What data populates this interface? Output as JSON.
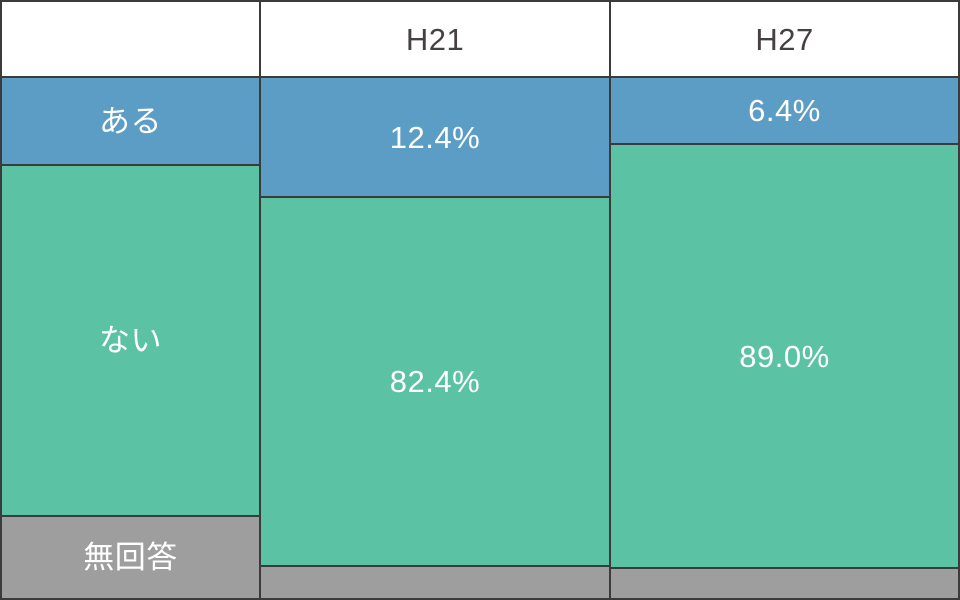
{
  "chart_data": {
    "type": "bar",
    "subtype": "stacked-percentage-comparison-table",
    "categories": [
      "ある",
      "ない",
      "無回答"
    ],
    "series": [
      {
        "name": "H21",
        "values": [
          12.4,
          82.4,
          null
        ],
        "labels": [
          "12.4%",
          "82.4%",
          ""
        ]
      },
      {
        "name": "H27",
        "values": [
          6.4,
          89.0,
          null
        ],
        "labels": [
          "6.4%",
          "89.0%",
          ""
        ]
      }
    ],
    "unit": "%",
    "legend_position": "left-column",
    "grid": false,
    "colors": {
      "ある": "#5C9DC6",
      "ない": "#5BC3A3",
      "無回答": "#9E9E9E"
    }
  },
  "table": {
    "header": {
      "col0": "",
      "col1": "H21",
      "col2": "H27"
    },
    "rows": [
      {
        "label": "ある",
        "h21": "12.4%",
        "h27": "6.4%"
      },
      {
        "label": "ない",
        "h21": "82.4%",
        "h27": "89.0%"
      },
      {
        "label": "無回答",
        "h21": "",
        "h27": ""
      }
    ]
  },
  "colors": {
    "blue": "#5C9DC6",
    "green": "#5BC3A3",
    "gray": "#9E9E9E",
    "border": "#3B3B3B",
    "header_bg": "#FFFFFF",
    "header_text": "#454041",
    "value_text": "#FFFFFF"
  }
}
